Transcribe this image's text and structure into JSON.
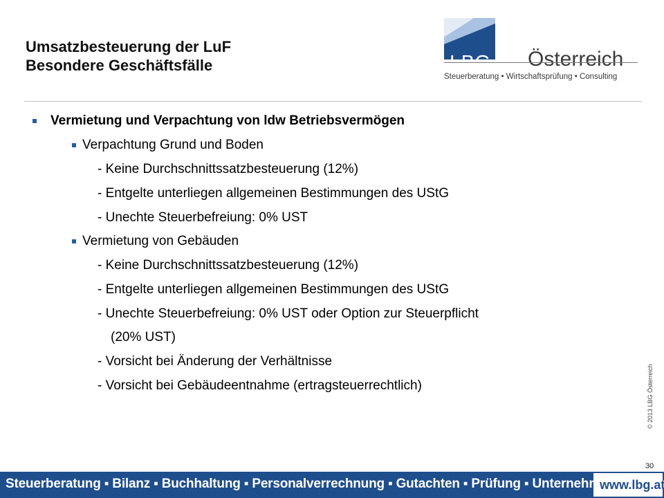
{
  "slide": {
    "title_line1": "Umsatzbesteuerung der LuF",
    "title_line2": "Besondere Geschäftsfälle"
  },
  "logo": {
    "mark_text": "LBG",
    "country": "Österreich",
    "subtitle": "Steuerberatung • Wirtschaftsprüfung • Consulting",
    "colors": {
      "blue": "#1f4e8c",
      "light_blue": "#c9d9ee"
    }
  },
  "content": {
    "lines": [
      "Vermietung und Verpachtung von ldw Betriebsvermögen",
      "Verpachtung Grund und Boden",
      "- Keine Durchschnittssatzbesteuerung (12%)",
      "- Entgelte unterliegen allgemeinen Bestimmungen des UStG",
      "- Unechte Steuerbefreiung:  0% UST",
      "Vermietung von Gebäuden",
      "- Keine Durchschnittssatzbesteuerung (12%)",
      "- Entgelte unterliegen allgemeinen Bestimmungen des UStG",
      "- Unechte Steuerbefreiung:  0% UST oder Option zur Steuerpflicht",
      "(20% UST)",
      "- Vorsicht bei Änderung der Verhältnisse",
      "- Vorsicht bei Gebäudeentnahme (ertragsteuerrechtlich)"
    ]
  },
  "copyright": "© 2013  LBG Österreich",
  "page_number": "30",
  "footer": {
    "services": "Steuerberatung ▪ Bilanz ▪ Buchhaltung ▪ Personalverrechnung ▪ Gutachten ▪ Prüfung ▪ Unternehmensberatung",
    "url": "www.lbg.at"
  },
  "colors": {
    "bullet": "#2b5d9e",
    "footer_bg": "#1f4e8c"
  }
}
